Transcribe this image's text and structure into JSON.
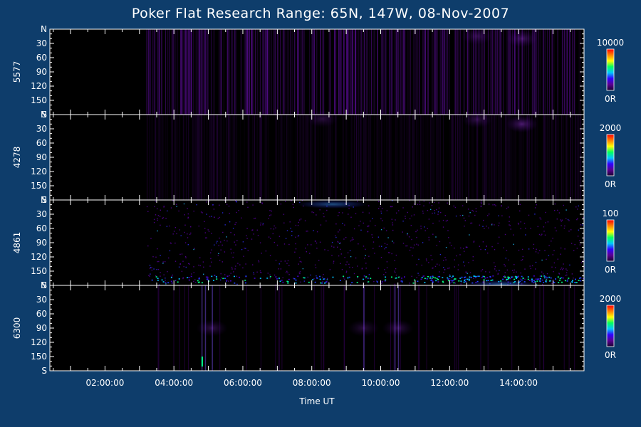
{
  "chart_data": {
    "type": "heatmap",
    "title": "Poker Flat Research Range: 65N, 147W, 08-Nov-2007",
    "xlabel": "Time UT",
    "x_ticks": [
      "02:00:00",
      "04:00:00",
      "06:00:00",
      "08:00:00",
      "10:00:00",
      "12:00:00",
      "14:00:00"
    ],
    "x_tick_hours": [
      2,
      4,
      6,
      8,
      10,
      12,
      14
    ],
    "x_range_hours": [
      0.4,
      15.9
    ],
    "y_ticks": [
      "N",
      "30",
      "60",
      "90",
      "120",
      "150",
      "S"
    ],
    "y_tick_values": [
      0,
      30,
      60,
      90,
      120,
      150,
      180
    ],
    "y_range": [
      0,
      180
    ],
    "colorscale": [
      "#1a0030",
      "#5a0090",
      "#3000ff",
      "#00c8ff",
      "#00ff60",
      "#ffff00",
      "#ff8000",
      "#ff0000"
    ],
    "panels": [
      {
        "name": "5577",
        "scale_max": "10000",
        "scale_min": "0R",
        "data_start_hour": 3.2,
        "features": [
          {
            "hour": 14.1,
            "angle": 20,
            "level": 0.35
          },
          {
            "hour": 12.8,
            "angle": 15,
            "level": 0.25
          }
        ]
      },
      {
        "name": "4278",
        "scale_max": "2000",
        "scale_min": "0R",
        "data_start_hour": 3.2,
        "features": [
          {
            "hour": 14.1,
            "angle": 20,
            "level": 0.45
          },
          {
            "hour": 12.8,
            "angle": 10,
            "level": 0.3
          },
          {
            "hour": 8.3,
            "angle": 5,
            "level": 0.25
          }
        ]
      },
      {
        "name": "4861",
        "scale_max": "100",
        "scale_min": "0R",
        "data_start_hour": 3.2,
        "features": [
          {
            "hour": 8.6,
            "angle": 5,
            "level": 0.5
          },
          {
            "hour": 13.5,
            "angle": 178,
            "level": 0.55
          }
        ]
      },
      {
        "name": "6300",
        "scale_max": "2000",
        "scale_min": "0R",
        "data_start_hour": 3.2,
        "features": [
          {
            "hour": 5.1,
            "angle": 90,
            "level": 0.3
          },
          {
            "hour": 9.5,
            "angle": 90,
            "level": 0.25
          },
          {
            "hour": 10.5,
            "angle": 90,
            "level": 0.3
          }
        ]
      }
    ]
  }
}
